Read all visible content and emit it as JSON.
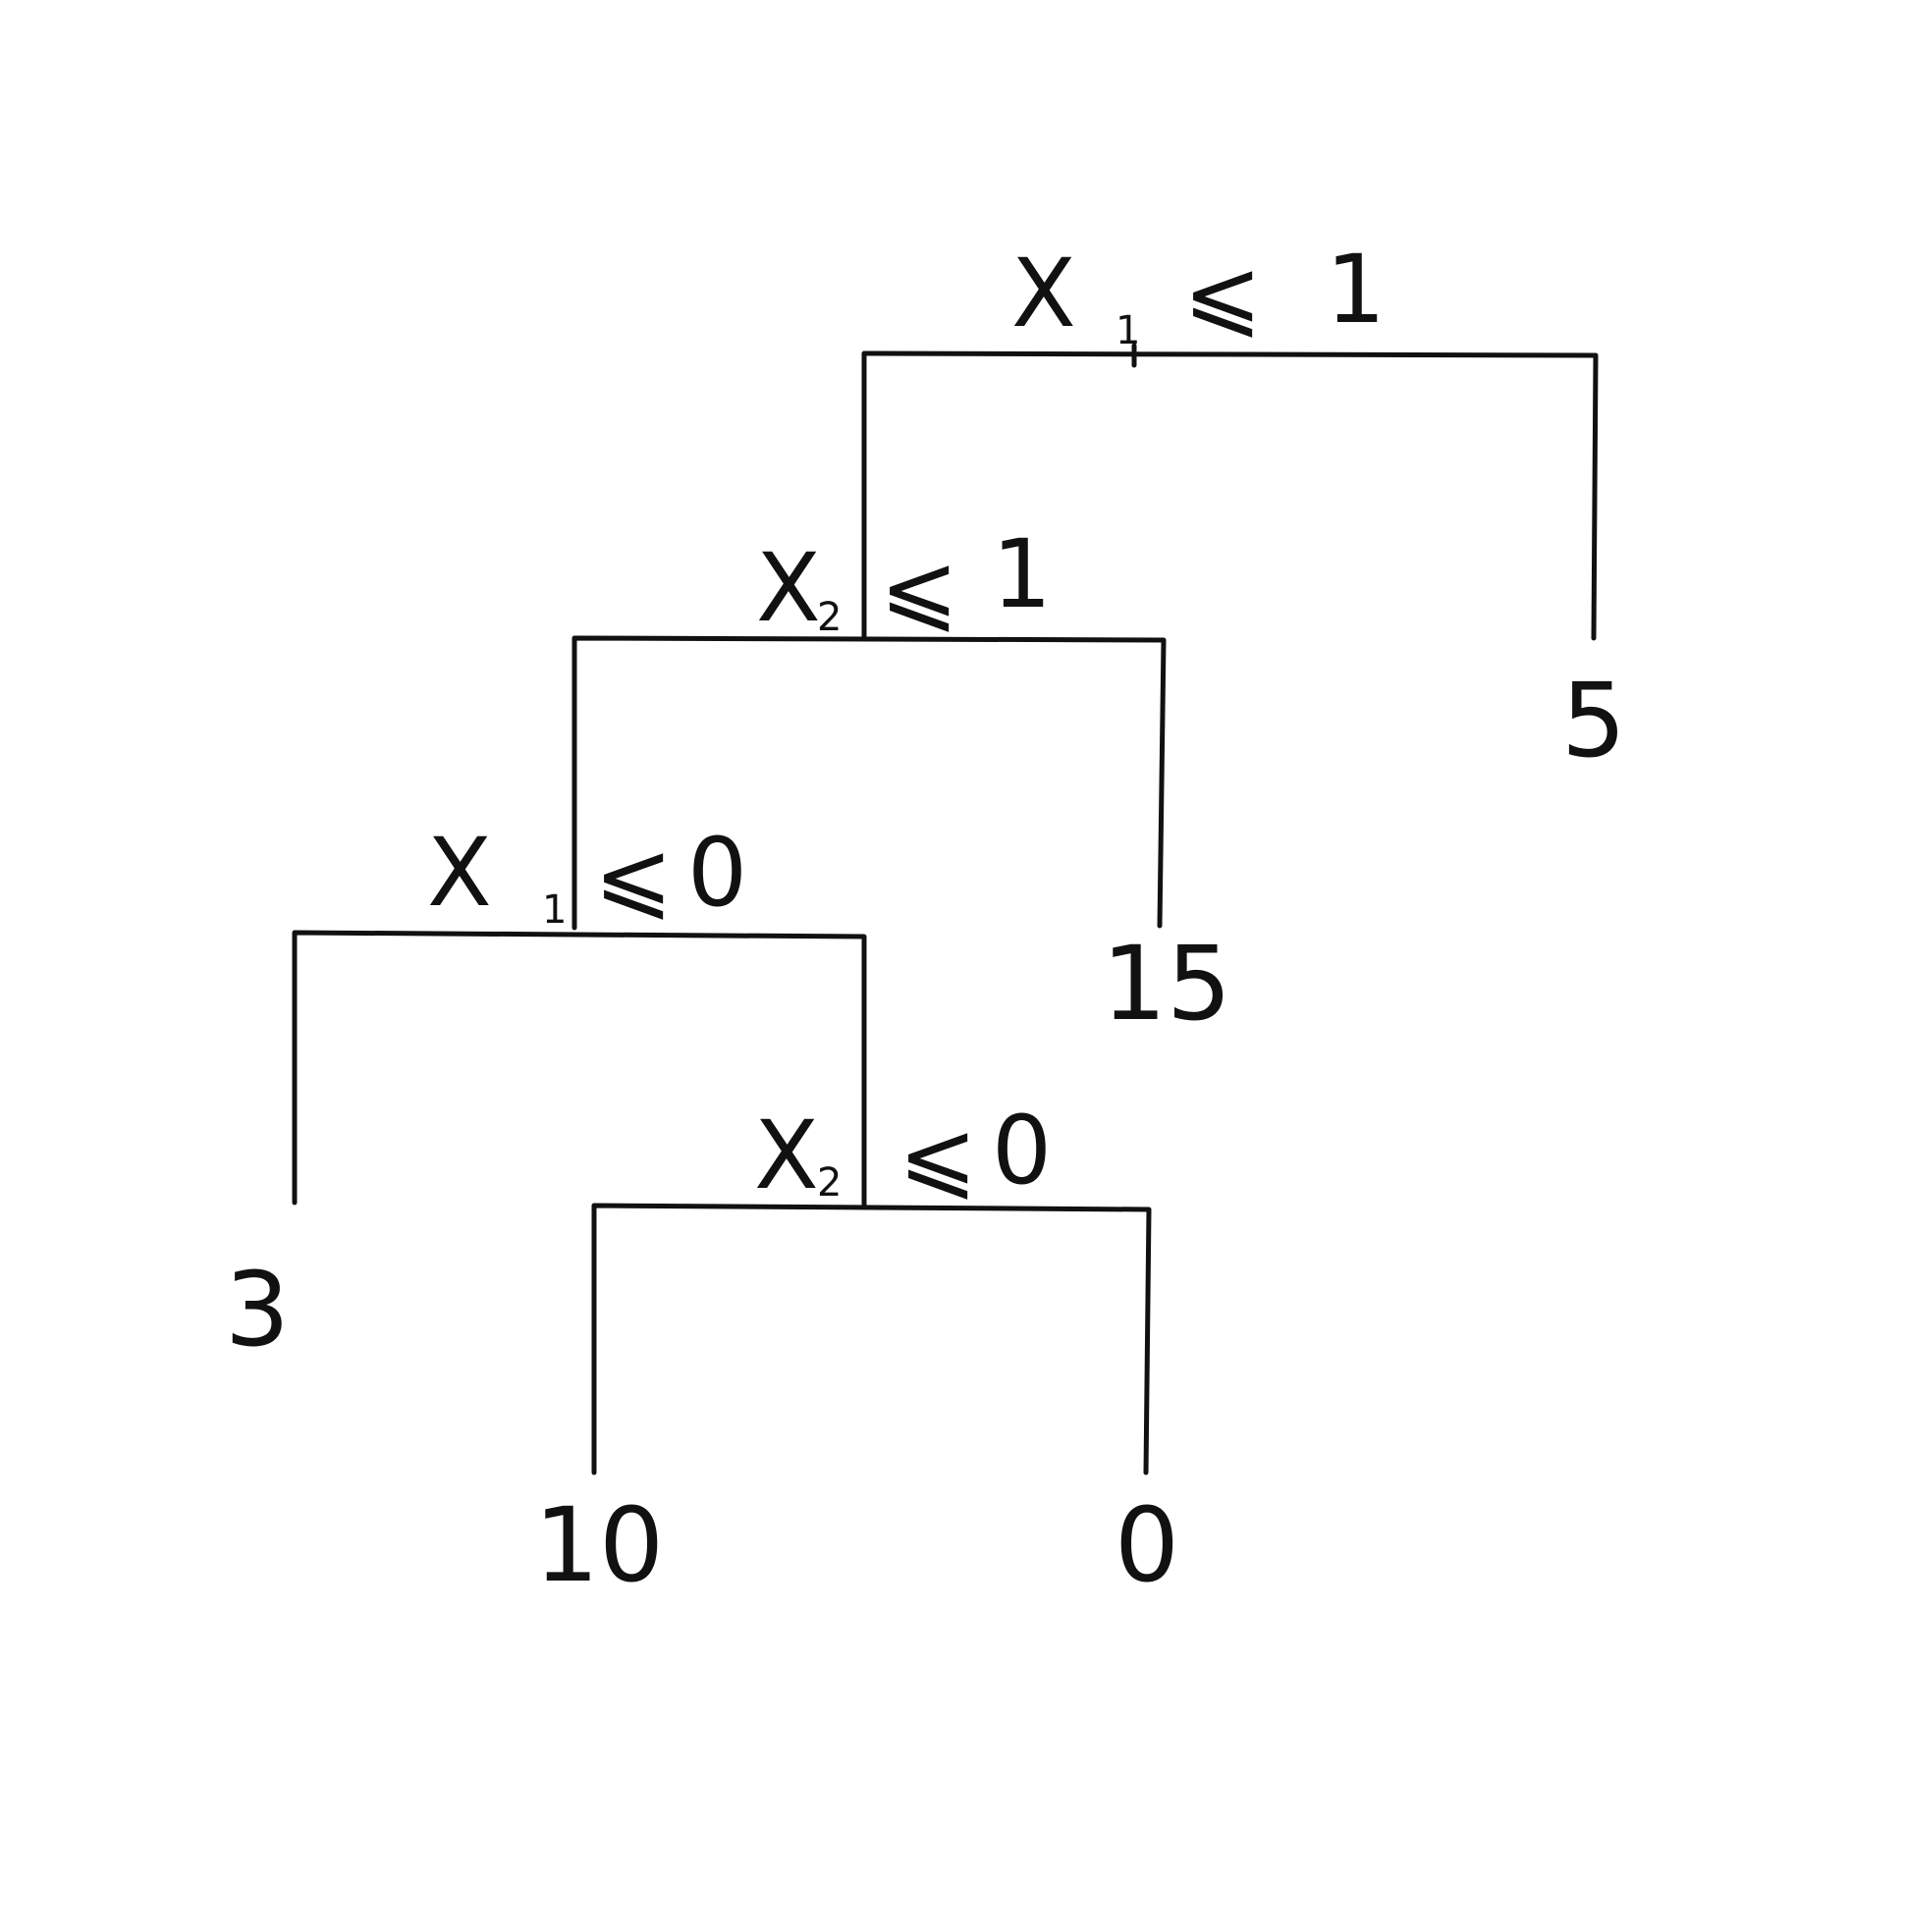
{
  "tree": {
    "splits": [
      {
        "id": "root",
        "variable": "X",
        "subscript": "1",
        "relation": "⩽",
        "threshold": "1"
      },
      {
        "id": "left1",
        "variable": "X",
        "subscript": "2",
        "relation": "⩽",
        "threshold": "1"
      },
      {
        "id": "left2",
        "variable": "X",
        "subscript": "1",
        "relation": "⩽",
        "threshold": "0"
      },
      {
        "id": "right3",
        "variable": "X",
        "subscript": "2",
        "relation": "⩽",
        "threshold": "0"
      }
    ],
    "leaves": [
      {
        "id": "leaf-5",
        "value": "5"
      },
      {
        "id": "leaf-15",
        "value": "15"
      },
      {
        "id": "leaf-3",
        "value": "3"
      },
      {
        "id": "leaf-10",
        "value": "10"
      },
      {
        "id": "leaf-0",
        "value": "0"
      }
    ]
  }
}
